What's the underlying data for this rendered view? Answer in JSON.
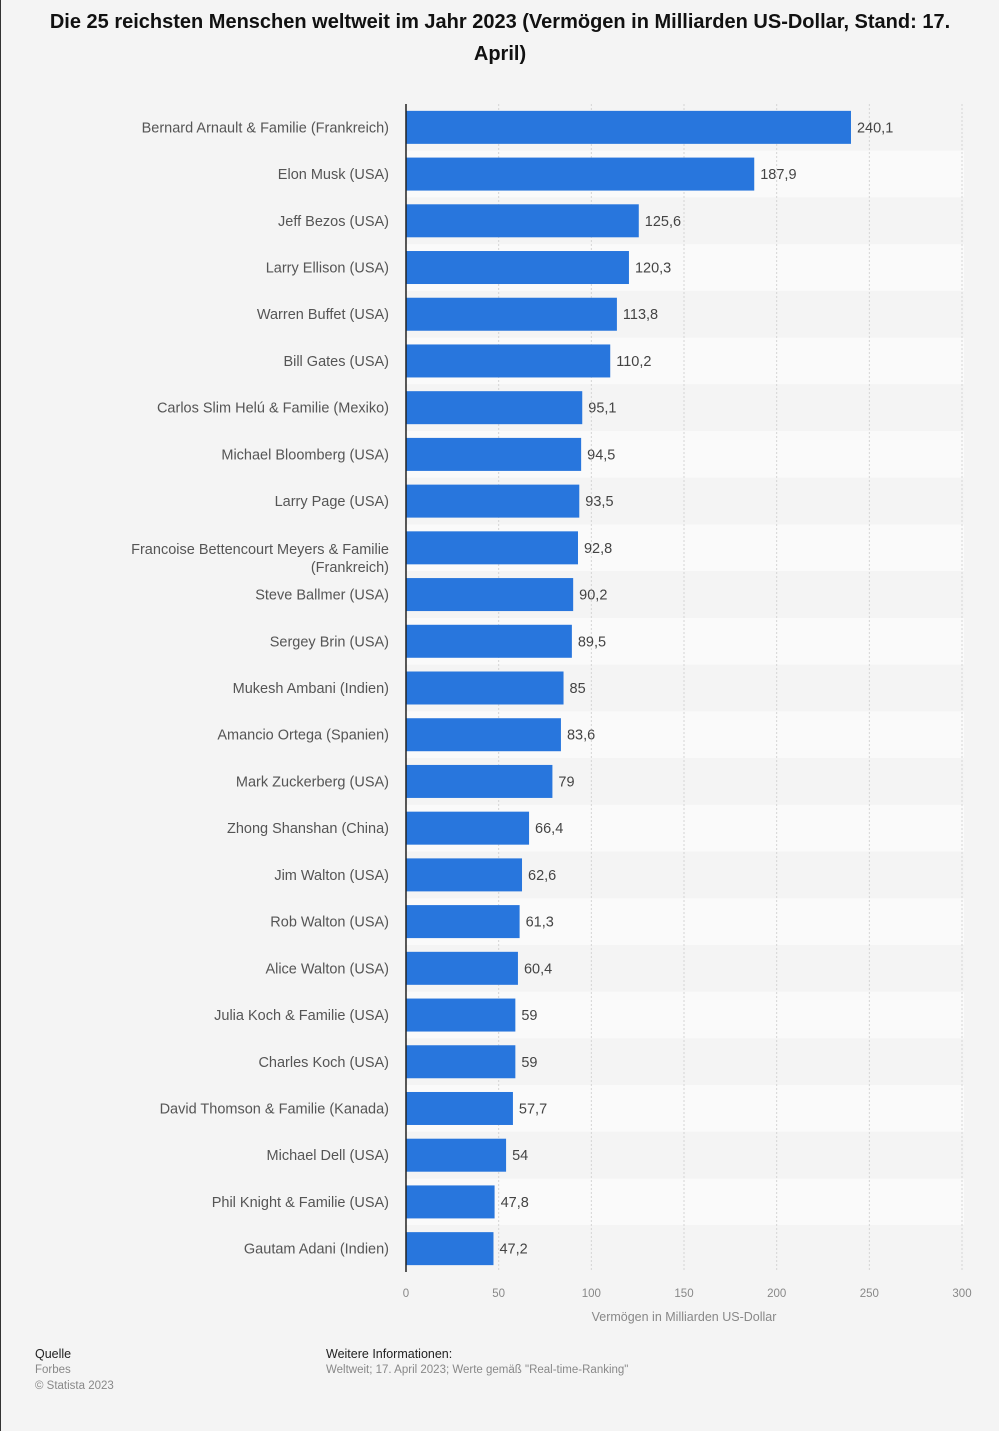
{
  "chart_data": {
    "type": "bar",
    "orientation": "horizontal",
    "title": "Die 25 reichsten Menschen weltweit im Jahr 2023 (Vermögen in Milliarden US-Dollar, Stand: 17. April)",
    "xlabel": "Vermögen in Milliarden US-Dollar",
    "xlim": [
      0,
      300
    ],
    "xticks": [
      "0",
      "50",
      "100",
      "150",
      "200",
      "250",
      "300"
    ],
    "xtick_values": [
      0,
      50,
      100,
      150,
      200,
      250,
      300
    ],
    "grid": true,
    "bar_color": "#2876dd",
    "categories": [
      "Bernard Arnault & Familie (Frankreich)",
      "Elon Musk (USA)",
      "Jeff Bezos (USA)",
      "Larry Ellison (USA)",
      "Warren Buffet (USA)",
      "Bill Gates (USA)",
      "Carlos Slim Helú & Familie (Mexiko)",
      "Michael Bloomberg (USA)",
      "Larry Page (USA)",
      "Francoise Bettencourt Meyers & Familie (Frankreich)",
      "Steve Ballmer (USA)",
      "Sergey Brin (USA)",
      "Mukesh Ambani (Indien)",
      "Amancio Ortega (Spanien)",
      "Mark Zuckerberg (USA)",
      "Zhong Shanshan (China)",
      "Jim Walton (USA)",
      "Rob Walton (USA)",
      "Alice Walton (USA)",
      "Julia Koch & Familie (USA)",
      "Charles Koch (USA)",
      "David Thomson & Familie (Kanada)",
      "Michael Dell (USA)",
      "Phil Knight & Familie (USA)",
      "Gautam Adani (Indien)"
    ],
    "values": [
      240.1,
      187.9,
      125.6,
      120.3,
      113.8,
      110.2,
      95.1,
      94.5,
      93.5,
      92.8,
      90.2,
      89.5,
      85,
      83.6,
      79,
      66.4,
      62.6,
      61.3,
      60.4,
      59,
      59,
      57.7,
      54,
      47.8,
      47.2
    ],
    "value_labels": [
      "240,1",
      "187,9",
      "125,6",
      "120,3",
      "113,8",
      "110,2",
      "95,1",
      "94,5",
      "93,5",
      "92,8",
      "90,2",
      "89,5",
      "85",
      "83,6",
      "79",
      "66,4",
      "62,6",
      "61,3",
      "60,4",
      "59",
      "59",
      "57,7",
      "54",
      "47,8",
      "47,2"
    ]
  },
  "footer": {
    "source_heading": "Quelle",
    "source": "Forbes",
    "copyright": "© Statista 2023",
    "info_heading": "Weitere Informationen:",
    "info": "Weltweit; 17. April 2023; Werte gemäß \"Real-time-Ranking\""
  }
}
